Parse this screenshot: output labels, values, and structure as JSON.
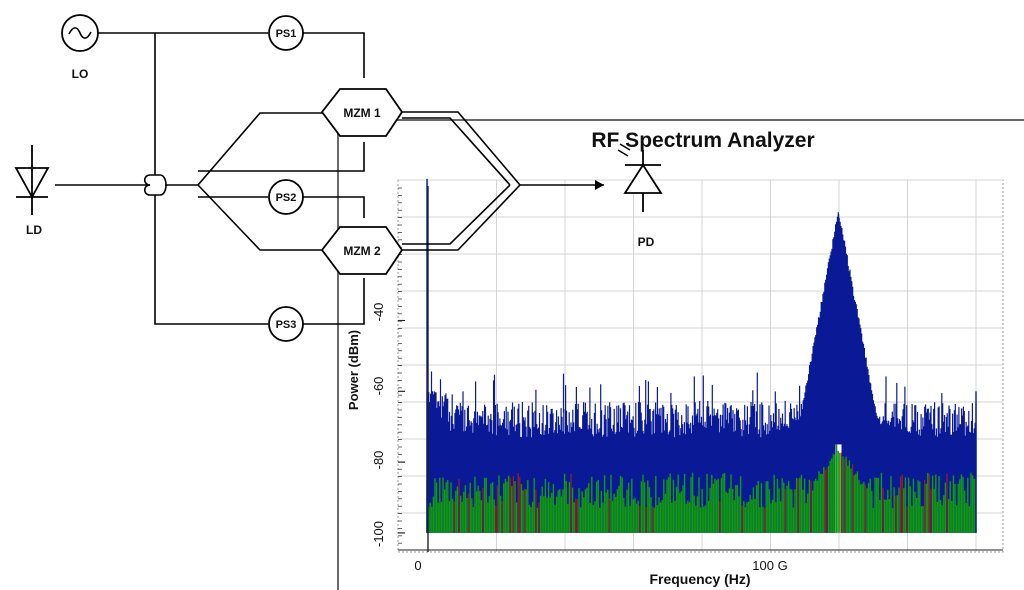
{
  "diagram": {
    "lo_label": "LO",
    "ld_label": "LD",
    "pd_label": "PD",
    "ps1_label": "PS1",
    "ps2_label": "PS2",
    "ps3_label": "PS3",
    "mzm1_label": "MZM 1",
    "mzm2_label": "MZM 2"
  },
  "analyzer": {
    "title": "RF Spectrum Analyzer"
  },
  "chart_data": {
    "type": "area",
    "title": "RF Spectrum Analyzer",
    "xlabel": "Frequency (Hz)",
    "ylabel": "Power (dBm)",
    "x_tick_labels": [
      "0",
      "100 G"
    ],
    "y_tick_labels": [
      "-40",
      "-60",
      "-80",
      "-100"
    ],
    "y_ticks": [
      -40,
      -60,
      -80,
      -100
    ],
    "x_ticks_hz": [
      0,
      100000000000
    ],
    "xlim_hz": [
      0,
      200000000000
    ],
    "ylim": [
      -102,
      -2
    ],
    "grid": true,
    "colors": {
      "signal": "#0a1a96",
      "noise_green": "#109a10",
      "noise_red": "#9a2020",
      "grid": "#d4d4d4"
    },
    "series": [
      {
        "color": "#0a1a96",
        "floor_dbm": -68,
        "peaks": [
          {
            "x_hz": 0,
            "power_dbm": 0
          },
          {
            "x_hz": 50000000000,
            "power_dbm": -55
          },
          {
            "x_hz": 150000000000,
            "power_dbm": -10
          }
        ]
      },
      {
        "color": "#109a10",
        "floor_dbm": -88,
        "peaks": [
          {
            "x_hz": 150000000000,
            "power_dbm": -77
          }
        ]
      }
    ]
  }
}
